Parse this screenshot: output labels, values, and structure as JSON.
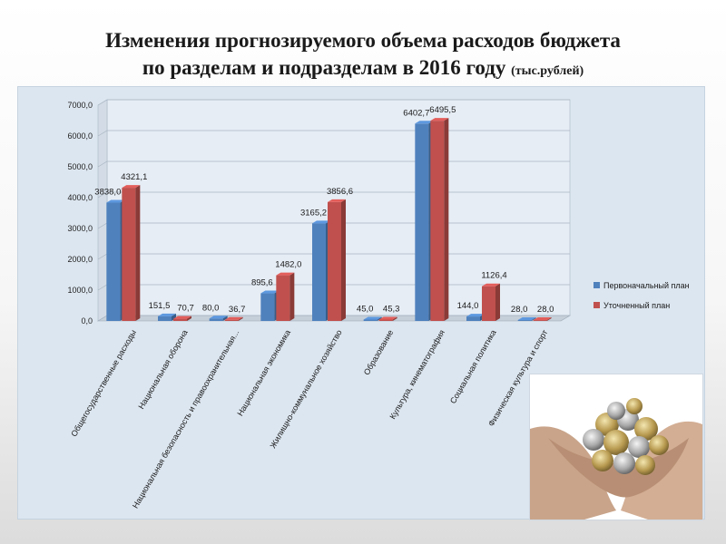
{
  "slide": {
    "title_line1": "Изменения прогнозируемого объема расходов бюджета",
    "title_line2": "по разделам и подразделам в 2016 году",
    "title_unit": "(тыс.рублей)"
  },
  "image": {
    "icon": "hands-with-coins-photo"
  },
  "chart_data": {
    "type": "bar",
    "title": "",
    "xlabel": "",
    "ylabel": "",
    "ylim": [
      0,
      7000
    ],
    "yticks": [
      "0,0",
      "1000,0",
      "2000,0",
      "3000,0",
      "4000,0",
      "5000,0",
      "6000,0",
      "7000,0"
    ],
    "grid": true,
    "legend_position": "right",
    "categories": [
      "Общегосударственные расходы",
      "Национальная оборона",
      "Национальная безопасность и правоохранительная...",
      "Национальная экономика",
      "Жилищно-коммунальное хозяйство",
      "Образование",
      "Культура, кинематография",
      "Социальная политика",
      "Физическая культура и спорт"
    ],
    "series": [
      {
        "name": "Первоначальный план",
        "color": "#4f81bd",
        "values": [
          3838.0,
          151.5,
          80.0,
          895.6,
          3165.2,
          45.0,
          6402.7,
          144.0,
          28.0
        ],
        "labels": [
          "3838,0",
          "151,5",
          "80,0",
          "895,6",
          "3165,2",
          "45,0",
          "6402,7",
          "144,0",
          "28,0"
        ]
      },
      {
        "name": "Уточненный план",
        "color": "#c0504d",
        "values": [
          4321.1,
          70.7,
          36.7,
          1482.0,
          3856.6,
          45.3,
          6495.5,
          1126.4,
          28.0
        ],
        "labels": [
          "4321,1",
          "70,7",
          "36,7",
          "1482,0",
          "3856,6",
          "45,3",
          "6495,5",
          "1126,4",
          "28,0"
        ]
      }
    ]
  }
}
